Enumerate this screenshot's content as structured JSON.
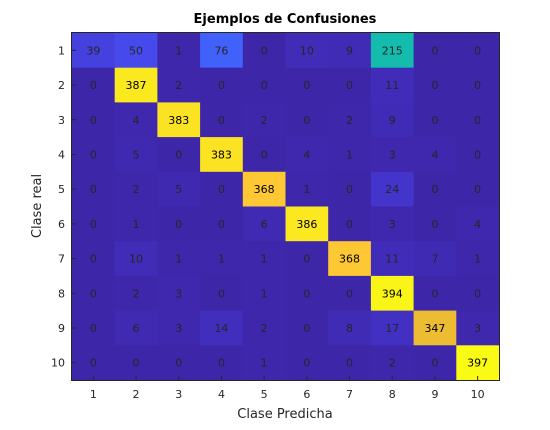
{
  "chart_data": {
    "type": "heatmap",
    "title": "Ejemplos de Confusiones",
    "xlabel": "Clase Predicha",
    "ylabel": "Clase real",
    "x_categories": [
      "1",
      "2",
      "3",
      "4",
      "5",
      "6",
      "7",
      "8",
      "9",
      "10"
    ],
    "y_categories": [
      "1",
      "2",
      "3",
      "4",
      "5",
      "6",
      "7",
      "8",
      "9",
      "10"
    ],
    "values": [
      [
        39,
        50,
        1,
        76,
        0,
        10,
        9,
        215,
        0,
        0
      ],
      [
        0,
        387,
        2,
        0,
        0,
        0,
        0,
        11,
        0,
        0
      ],
      [
        0,
        4,
        383,
        0,
        2,
        0,
        2,
        9,
        0,
        0
      ],
      [
        0,
        5,
        0,
        383,
        0,
        4,
        1,
        3,
        4,
        0
      ],
      [
        0,
        2,
        5,
        0,
        368,
        1,
        0,
        24,
        0,
        0
      ],
      [
        0,
        1,
        0,
        0,
        6,
        386,
        0,
        3,
        0,
        4
      ],
      [
        0,
        10,
        1,
        1,
        1,
        0,
        368,
        11,
        7,
        1
      ],
      [
        0,
        2,
        3,
        0,
        1,
        0,
        0,
        394,
        0,
        0
      ],
      [
        0,
        6,
        3,
        14,
        2,
        0,
        8,
        17,
        347,
        3
      ],
      [
        0,
        0,
        0,
        0,
        1,
        0,
        0,
        2,
        0,
        397
      ]
    ],
    "colormap": "parula",
    "value_range": [
      0,
      397
    ],
    "grid": false,
    "legend": "none"
  }
}
